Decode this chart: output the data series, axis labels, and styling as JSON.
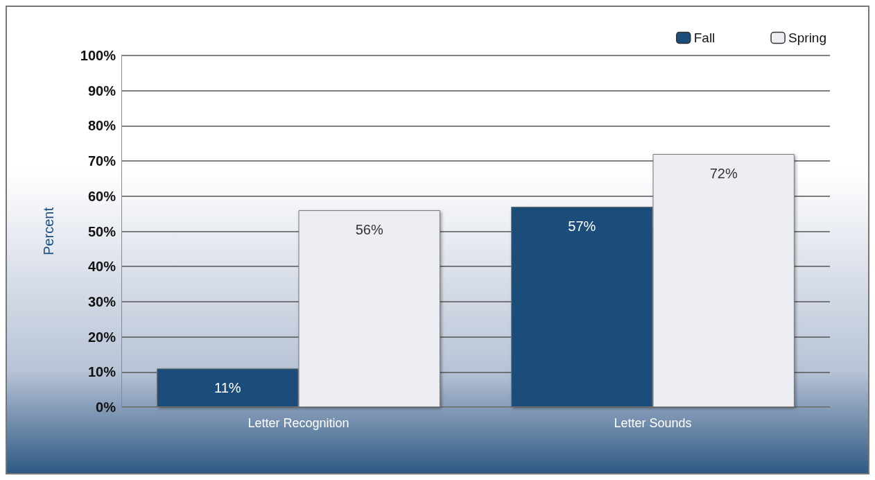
{
  "chart_data": {
    "type": "bar",
    "ylabel": "Percent",
    "categories": [
      "Letter Recognition",
      "Letter Sounds"
    ],
    "series": [
      {
        "name": "Fall",
        "color": "#1b4e7a",
        "values": [
          11,
          57
        ],
        "value_labels": [
          "11%",
          "57%"
        ]
      },
      {
        "name": "Spring",
        "color": "#eceef4",
        "values": [
          56,
          72
        ],
        "value_labels": [
          "56%",
          "72%"
        ]
      }
    ],
    "ylim": [
      0,
      100
    ],
    "yticks": [
      {
        "value": 0,
        "label": "0%"
      },
      {
        "value": 10,
        "label": "10%"
      },
      {
        "value": 20,
        "label": "20%"
      },
      {
        "value": 30,
        "label": "30%"
      },
      {
        "value": 40,
        "label": "40%"
      },
      {
        "value": 50,
        "label": "50%"
      },
      {
        "value": 60,
        "label": "60%"
      },
      {
        "value": 70,
        "label": "70%"
      },
      {
        "value": 80,
        "label": "80%"
      },
      {
        "value": 90,
        "label": "90%"
      },
      {
        "value": 100,
        "label": "100%"
      }
    ],
    "grid": true,
    "legend": "top right"
  }
}
